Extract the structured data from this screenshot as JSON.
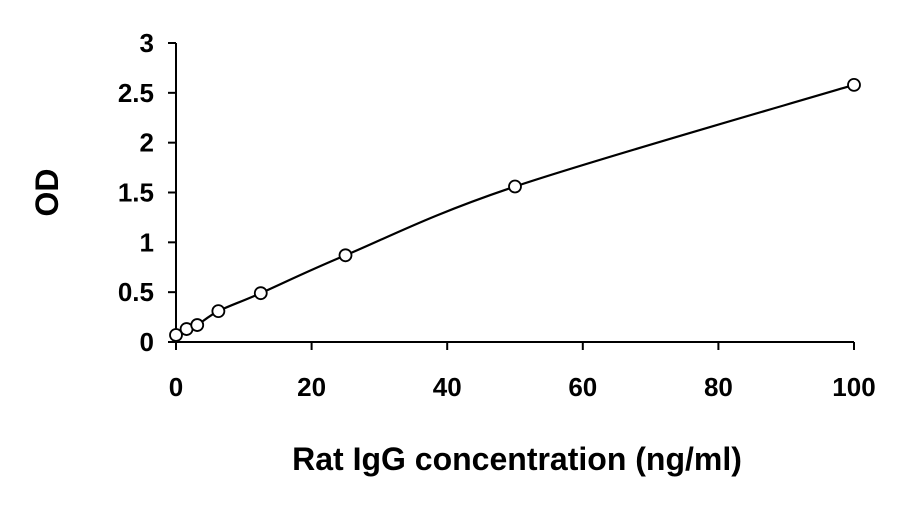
{
  "chart_data": {
    "type": "scatter",
    "title": "",
    "xlabel": "Rat IgG concentration (ng/ml)",
    "ylabel": "OD",
    "xlim": [
      0,
      100
    ],
    "ylim": [
      0,
      3
    ],
    "xticks": [
      0,
      20,
      40,
      60,
      80,
      100
    ],
    "yticks": [
      0,
      0.5,
      1,
      1.5,
      2,
      2.5,
      3
    ],
    "xtick_labels": [
      "0",
      "20",
      "40",
      "60",
      "80",
      "100"
    ],
    "ytick_labels": [
      "0",
      "0.5",
      "1",
      "1.5",
      "2",
      "2.5",
      "3"
    ],
    "grid": false,
    "legend": "none",
    "series": [
      {
        "x": [
          0,
          1.56,
          3.13,
          6.25,
          12.5,
          25,
          50,
          100
        ],
        "y": [
          0.07,
          0.13,
          0.17,
          0.31,
          0.49,
          0.87,
          1.56,
          2.58
        ],
        "marker": "open-circle",
        "fit_line": true,
        "color": "#000000"
      }
    ]
  }
}
